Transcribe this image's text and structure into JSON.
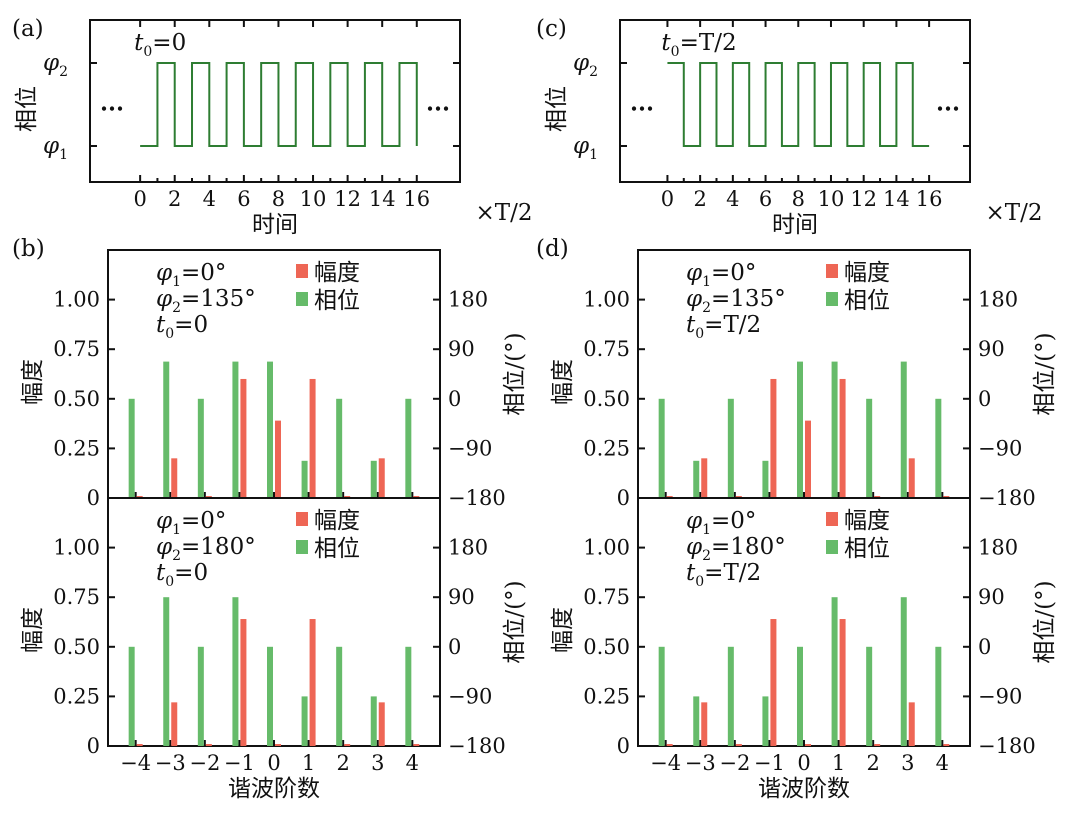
{
  "colors": {
    "amplitude": "#ee6655",
    "phase": "#66bb6a",
    "wave": "#2e7d32",
    "frame": "#111111",
    "dots": "#2e7d32"
  },
  "chart_data": [
    {
      "id": "a",
      "type": "line",
      "panel_label": "(a)",
      "title": "t0=0",
      "t0_label": "=0",
      "xlabel": "时间",
      "x_unit": "×T/2",
      "ylabel": "相位",
      "ytick_labels": [
        "φ1",
        "φ2"
      ],
      "xticks": [
        0,
        2,
        4,
        6,
        8,
        10,
        12,
        14,
        16
      ],
      "xlim": [
        -2.9,
        18.5
      ],
      "ellipsis": "...",
      "start": 0,
      "segments": [
        {
          "x0": 0,
          "x1": 1,
          "level": "low"
        },
        {
          "x0": 1,
          "x1": 2,
          "level": "high"
        },
        {
          "x0": 2,
          "x1": 3,
          "level": "low"
        },
        {
          "x0": 3,
          "x1": 4,
          "level": "high"
        },
        {
          "x0": 4,
          "x1": 5,
          "level": "low"
        },
        {
          "x0": 5,
          "x1": 6,
          "level": "high"
        },
        {
          "x0": 6,
          "x1": 7,
          "level": "low"
        },
        {
          "x0": 7,
          "x1": 8,
          "level": "high"
        },
        {
          "x0": 8,
          "x1": 9,
          "level": "low"
        },
        {
          "x0": 9,
          "x1": 10,
          "level": "high"
        },
        {
          "x0": 10,
          "x1": 11,
          "level": "low"
        },
        {
          "x0": 11,
          "x1": 12,
          "level": "high"
        },
        {
          "x0": 12,
          "x1": 13,
          "level": "low"
        },
        {
          "x0": 13,
          "x1": 14,
          "level": "high"
        },
        {
          "x0": 14,
          "x1": 15,
          "level": "low"
        },
        {
          "x0": 15,
          "x1": 16,
          "level": "high"
        }
      ]
    },
    {
      "id": "c",
      "type": "line",
      "panel_label": "(c)",
      "title": "t0=T/2",
      "t0_label": "=T/2",
      "xlabel": "时间",
      "x_unit": "×T/2",
      "ylabel": "相位",
      "ytick_labels": [
        "φ1",
        "φ2"
      ],
      "xticks": [
        0,
        2,
        4,
        6,
        8,
        10,
        12,
        14,
        16
      ],
      "xlim": [
        -2.9,
        18.5
      ],
      "ellipsis": "...",
      "start": 0,
      "segments": [
        {
          "x0": 0,
          "x1": 1,
          "level": "high"
        },
        {
          "x0": 1,
          "x1": 2,
          "level": "low"
        },
        {
          "x0": 2,
          "x1": 3,
          "level": "high"
        },
        {
          "x0": 3,
          "x1": 4,
          "level": "low"
        },
        {
          "x0": 4,
          "x1": 5,
          "level": "high"
        },
        {
          "x0": 5,
          "x1": 6,
          "level": "low"
        },
        {
          "x0": 6,
          "x1": 7,
          "level": "high"
        },
        {
          "x0": 7,
          "x1": 8,
          "level": "low"
        },
        {
          "x0": 8,
          "x1": 9,
          "level": "high"
        },
        {
          "x0": 9,
          "x1": 10,
          "level": "low"
        },
        {
          "x0": 10,
          "x1": 11,
          "level": "high"
        },
        {
          "x0": 11,
          "x1": 12,
          "level": "low"
        },
        {
          "x0": 12,
          "x1": 13,
          "level": "high"
        },
        {
          "x0": 13,
          "x1": 14,
          "level": "low"
        },
        {
          "x0": 14,
          "x1": 15,
          "level": "high"
        },
        {
          "x0": 15,
          "x1": 16,
          "level": "low"
        }
      ]
    },
    {
      "id": "b-top",
      "type": "bar",
      "panel_label": "(b)",
      "params": [
        "φ1=0°",
        "φ2=135°",
        "t0=0"
      ],
      "legend": [
        "幅度",
        "相位"
      ],
      "categories": [
        -4,
        -3,
        -2,
        -1,
        0,
        1,
        2,
        3,
        4
      ],
      "xticks": [
        "−4",
        "−3",
        "−2",
        "−1",
        "0",
        "1",
        "2",
        "3",
        "4"
      ],
      "ylabel_left": "幅度",
      "ylabel_right": "相位/(°)",
      "ylim_left": [
        0,
        1.25
      ],
      "yticks_left": [
        "0",
        "0.25",
        "0.50",
        "0.75",
        "1.00"
      ],
      "ylim_right": [
        -180,
        270
      ],
      "yticks_right": [
        "−180",
        "−90",
        "0",
        "90",
        "180"
      ],
      "series": [
        {
          "name": "幅度",
          "values": [
            0.01,
            0.2,
            0.01,
            0.6,
            0.39,
            0.6,
            0.01,
            0.2,
            0.01
          ]
        },
        {
          "name": "相位",
          "values": [
            0,
            67.5,
            0,
            67.5,
            67.5,
            -112.5,
            0,
            -112.5,
            0
          ]
        }
      ]
    },
    {
      "id": "b-bottom",
      "type": "bar",
      "params": [
        "φ1=0°",
        "φ2=180°",
        "t0=0"
      ],
      "legend": [
        "幅度",
        "相位"
      ],
      "categories": [
        -4,
        -3,
        -2,
        -1,
        0,
        1,
        2,
        3,
        4
      ],
      "xticks": [
        "−4",
        "−3",
        "−2",
        "−1",
        "0",
        "1",
        "2",
        "3",
        "4"
      ],
      "xlabel": "谐波阶数",
      "ylabel_left": "幅度",
      "ylabel_right": "相位/(°)",
      "ylim_left": [
        0,
        1.25
      ],
      "yticks_left": [
        "0",
        "0.25",
        "0.50",
        "0.75",
        "1.00"
      ],
      "ylim_right": [
        -180,
        270
      ],
      "yticks_right": [
        "−180",
        "−90",
        "0",
        "90",
        "180"
      ],
      "series": [
        {
          "name": "幅度",
          "values": [
            0.01,
            0.22,
            0.01,
            0.64,
            0.01,
            0.64,
            0.01,
            0.22,
            0.01
          ]
        },
        {
          "name": "相位",
          "values": [
            0,
            90,
            0,
            90,
            0,
            -90,
            0,
            -90,
            0
          ]
        }
      ]
    },
    {
      "id": "d-top",
      "type": "bar",
      "panel_label": "(d)",
      "params": [
        "φ1=0°",
        "φ2=135°",
        "t0=T/2"
      ],
      "legend": [
        "幅度",
        "相位"
      ],
      "categories": [
        -4,
        -3,
        -2,
        -1,
        0,
        1,
        2,
        3,
        4
      ],
      "xticks": [
        "−4",
        "−3",
        "−2",
        "−1",
        "0",
        "1",
        "2",
        "3",
        "4"
      ],
      "ylabel_left": "幅度",
      "ylabel_right": "相位/(°)",
      "ylim_left": [
        0,
        1.25
      ],
      "yticks_left": [
        "0",
        "0.25",
        "0.50",
        "0.75",
        "1.00"
      ],
      "ylim_right": [
        -180,
        270
      ],
      "yticks_right": [
        "−180",
        "−90",
        "0",
        "90",
        "180"
      ],
      "series": [
        {
          "name": "幅度",
          "values": [
            0.01,
            0.2,
            0.01,
            0.6,
            0.39,
            0.6,
            0.01,
            0.2,
            0.01
          ]
        },
        {
          "name": "相位",
          "values": [
            0,
            -112.5,
            0,
            -112.5,
            67.5,
            67.5,
            0,
            67.5,
            0
          ]
        }
      ]
    },
    {
      "id": "d-bottom",
      "type": "bar",
      "params": [
        "φ1=0°",
        "φ2=180°",
        "t0=T/2"
      ],
      "legend": [
        "幅度",
        "相位"
      ],
      "categories": [
        -4,
        -3,
        -2,
        -1,
        0,
        1,
        2,
        3,
        4
      ],
      "xticks": [
        "−4",
        "−3",
        "−2",
        "−1",
        "0",
        "1",
        "2",
        "3",
        "4"
      ],
      "xlabel": "谐波阶数",
      "ylabel_left": "幅度",
      "ylabel_right": "相位/(°)",
      "ylim_left": [
        0,
        1.25
      ],
      "yticks_left": [
        "0",
        "0.25",
        "0.50",
        "0.75",
        "1.00"
      ],
      "ylim_right": [
        -180,
        270
      ],
      "yticks_right": [
        "−180",
        "−90",
        "0",
        "90",
        "180"
      ],
      "series": [
        {
          "name": "幅度",
          "values": [
            0.01,
            0.22,
            0.01,
            0.64,
            0.01,
            0.64,
            0.01,
            0.22,
            0.01
          ]
        },
        {
          "name": "相位",
          "values": [
            0,
            -90,
            0,
            -90,
            0,
            90,
            0,
            90,
            0
          ]
        }
      ]
    }
  ]
}
